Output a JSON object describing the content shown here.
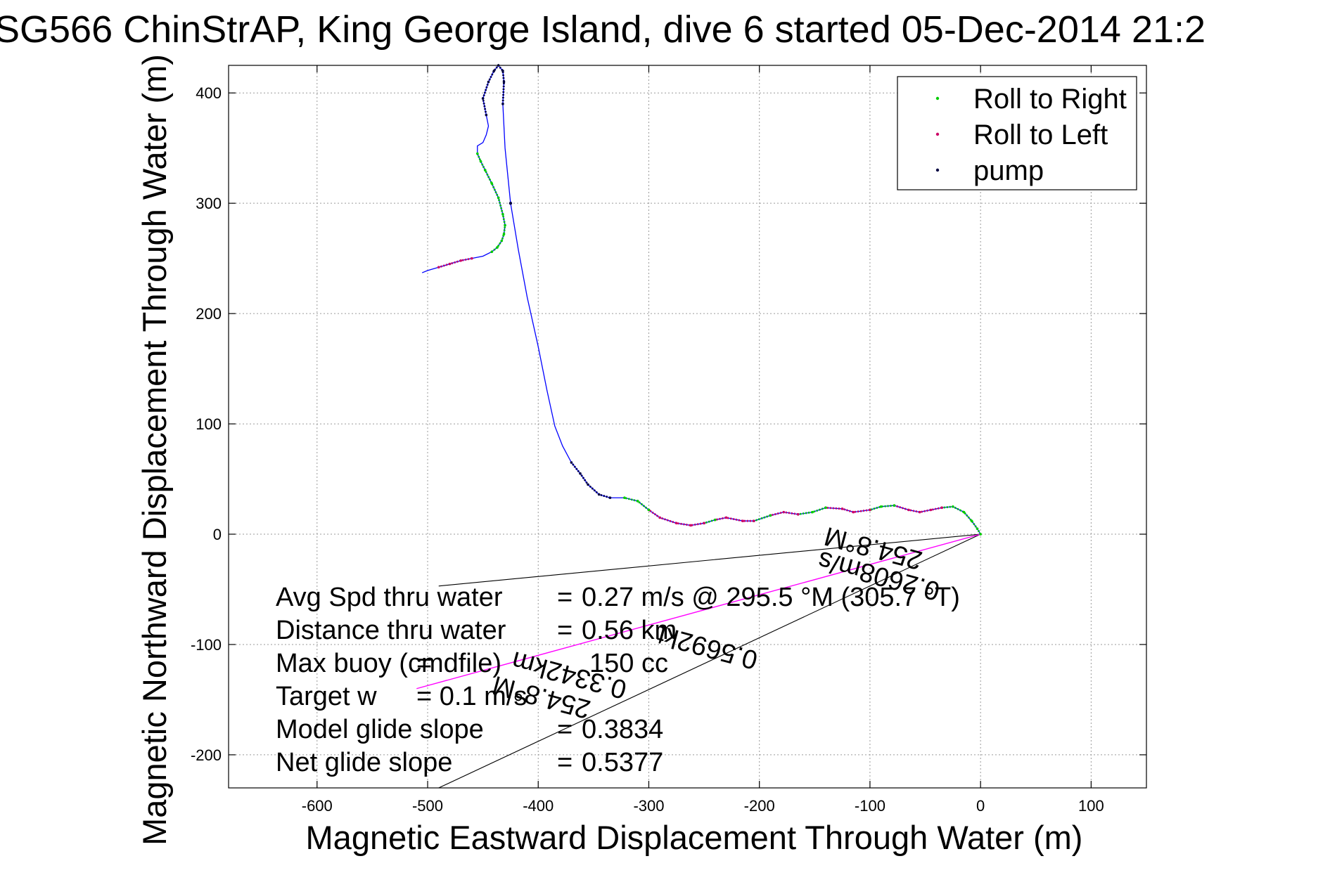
{
  "chart_data": {
    "type": "line",
    "title": "SG566 ChinStrAP, King George Island, dive 6 started 05-Dec-2014 21:2",
    "xlabel": "Magnetic Eastward Displacement Through Water (m)",
    "ylabel": "Magnetic Northward Displacement Through Water (m)",
    "xlim": [
      -680,
      150
    ],
    "ylim": [
      -230,
      425
    ],
    "xticks": [
      -600,
      -500,
      -400,
      -300,
      -200,
      -100,
      0,
      100
    ],
    "yticks": [
      -200,
      -100,
      0,
      100,
      200,
      300,
      400
    ],
    "grid": true,
    "legend_position": "top-right",
    "colors": {
      "track": "#0000ff",
      "roll_right": "#00cc00",
      "roll_left": "#cc0066",
      "pump": "#000040",
      "heading": "#ff00ff",
      "reference": "#000000"
    },
    "legend": [
      {
        "label": "Roll to Right",
        "color": "#00cc00"
      },
      {
        "label": "Roll to Left",
        "color": "#cc0066"
      },
      {
        "label": "pump",
        "color": "#000040"
      }
    ],
    "track": {
      "x": [
        0,
        -3,
        -8,
        -15,
        -25,
        -35,
        -45,
        -55,
        -65,
        -78,
        -90,
        -100,
        -115,
        -125,
        -140,
        -152,
        -165,
        -178,
        -190,
        -205,
        -215,
        -230,
        -240,
        -250,
        -262,
        -275,
        -290,
        -300,
        -310,
        -322,
        -335,
        -345,
        -355,
        -362,
        -370,
        -378,
        -385,
        -392,
        -400,
        -410,
        -418,
        -425,
        -430,
        -432,
        -431,
        -432,
        -436,
        -440,
        -445,
        -450,
        -447,
        -445,
        -447,
        -450,
        -455,
        -455,
        -452,
        -448,
        -442,
        -436,
        -432,
        -430,
        -431,
        -433,
        -437,
        -442,
        -450,
        -460,
        -470,
        -480,
        -490,
        -500,
        -505
      ],
      "y": [
        0,
        5,
        12,
        20,
        25,
        24,
        22,
        20,
        22,
        26,
        25,
        22,
        20,
        23,
        24,
        20,
        18,
        20,
        17,
        12,
        12,
        15,
        13,
        10,
        8,
        10,
        15,
        22,
        30,
        33,
        33,
        36,
        45,
        55,
        65,
        80,
        98,
        130,
        170,
        215,
        258,
        300,
        350,
        390,
        410,
        420,
        425,
        420,
        410,
        395,
        380,
        370,
        362,
        355,
        352,
        345,
        338,
        330,
        318,
        305,
        290,
        280,
        272,
        266,
        260,
        256,
        252,
        250,
        248,
        245,
        242,
        239,
        237
      ]
    },
    "segments": [
      {
        "type": "roll_right",
        "from": 0,
        "to": 5
      },
      {
        "type": "roll_left",
        "from": 5,
        "to": 9
      },
      {
        "type": "roll_right",
        "from": 9,
        "to": 11
      },
      {
        "type": "roll_left",
        "from": 11,
        "to": 14
      },
      {
        "type": "roll_right",
        "from": 14,
        "to": 16
      },
      {
        "type": "roll_left",
        "from": 16,
        "to": 18
      },
      {
        "type": "roll_right",
        "from": 18,
        "to": 19
      },
      {
        "type": "roll_left",
        "from": 19,
        "to": 22
      },
      {
        "type": "roll_right",
        "from": 22,
        "to": 23
      },
      {
        "type": "roll_left",
        "from": 23,
        "to": 27
      },
      {
        "type": "roll_right",
        "from": 27,
        "to": 29
      },
      {
        "type": "pump",
        "from": 30,
        "to": 34
      },
      {
        "type": "pump",
        "from": 41,
        "to": 41
      },
      {
        "type": "pump",
        "from": 43,
        "to": 50
      },
      {
        "type": "roll_right",
        "from": 55,
        "to": 65
      },
      {
        "type": "roll_left",
        "from": 67,
        "to": 70
      }
    ],
    "reference_lines": [
      {
        "type": "reference",
        "x": [
          0,
          -490
        ],
        "y": [
          0,
          -47
        ]
      },
      {
        "type": "reference",
        "x": [
          0,
          -490
        ],
        "y": [
          0,
          -230
        ]
      },
      {
        "type": "heading",
        "x": [
          0,
          -510
        ],
        "y": [
          0,
          -140
        ]
      }
    ],
    "rotated_annotations": [
      {
        "text": "0.2608m/s",
        "x": -90,
        "y": -30,
        "angle": 195
      },
      {
        "text": "0.5692kt",
        "x": -245,
        "y": -95,
        "angle": 195
      },
      {
        "text": "254.8°M",
        "x": -95,
        "y": -5,
        "angle": 195
      },
      {
        "text": "0.3342km",
        "x": -370,
        "y": -120,
        "angle": 195
      },
      {
        "text": "254.8°M",
        "x": -395,
        "y": -140,
        "angle": 195
      }
    ],
    "stats": [
      {
        "label": "Avg Spd thru water",
        "eq": "=",
        "value": "0.27 m/s @ 295.5 °M (305.7 °T)"
      },
      {
        "label": "Distance thru water",
        "eq": "=",
        "value": "0.56 km"
      },
      {
        "label": "Max buoy (cmdfile)",
        "eq": "=",
        "value": "150 cc"
      },
      {
        "label": "Target w",
        "eq": "= 0.1 m/s",
        "value": ""
      },
      {
        "label": "Model glide slope",
        "eq": "=",
        "value": "0.3834"
      },
      {
        "label": "Net glide slope",
        "eq": "=",
        "value": "0.5377"
      }
    ]
  }
}
